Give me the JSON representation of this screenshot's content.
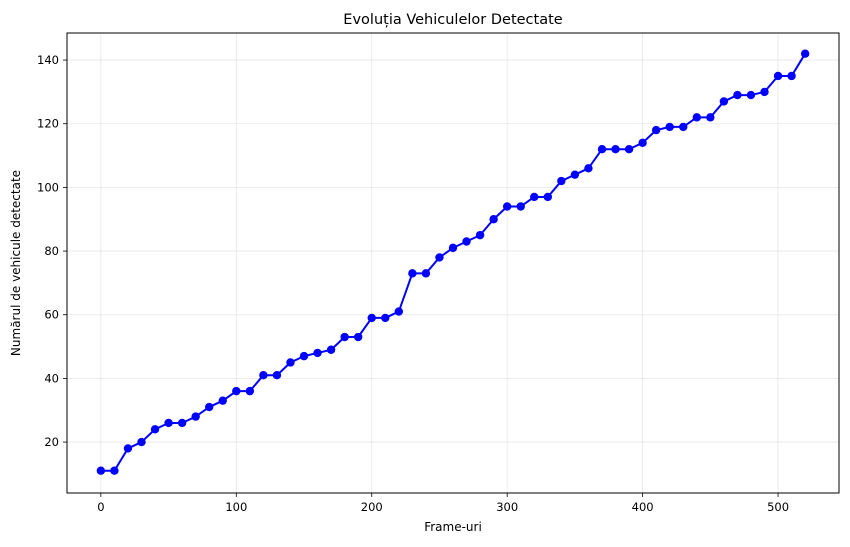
{
  "chart_data": {
    "type": "line",
    "title": "Evoluția Vehiculelor Detectate",
    "xlabel": "Frame-uri",
    "ylabel": "Numărul de vehicule detectate",
    "xlim": [
      -25,
      545
    ],
    "ylim": [
      4,
      148.5
    ],
    "xticks": [
      0,
      100,
      200,
      300,
      400,
      500
    ],
    "yticks": [
      20,
      40,
      60,
      80,
      100,
      120,
      140
    ],
    "grid": true,
    "line_color": "#0000ff",
    "series": [
      {
        "x": [
          0,
          10,
          20,
          30,
          40,
          50,
          60,
          70,
          80,
          90,
          100,
          110,
          120,
          130,
          140,
          150,
          160,
          170,
          180,
          190,
          200,
          210,
          220,
          230,
          240,
          250,
          260,
          270,
          280,
          290,
          300,
          310,
          320,
          330,
          340,
          350,
          360,
          370,
          380,
          390,
          400,
          410,
          420,
          430,
          440,
          450,
          460,
          470,
          480,
          490,
          500,
          510,
          520
        ],
        "values": [
          11,
          11,
          18,
          20,
          24,
          26,
          26,
          28,
          31,
          33,
          36,
          36,
          41,
          41,
          45,
          47,
          48,
          49,
          53,
          53,
          59,
          59,
          61,
          73,
          73,
          78,
          81,
          83,
          85,
          90,
          94,
          94,
          97,
          97,
          102,
          104,
          106,
          112,
          112,
          112,
          114,
          118,
          119,
          119,
          122,
          122,
          127,
          129,
          129,
          130,
          135,
          135,
          142
        ]
      }
    ]
  }
}
